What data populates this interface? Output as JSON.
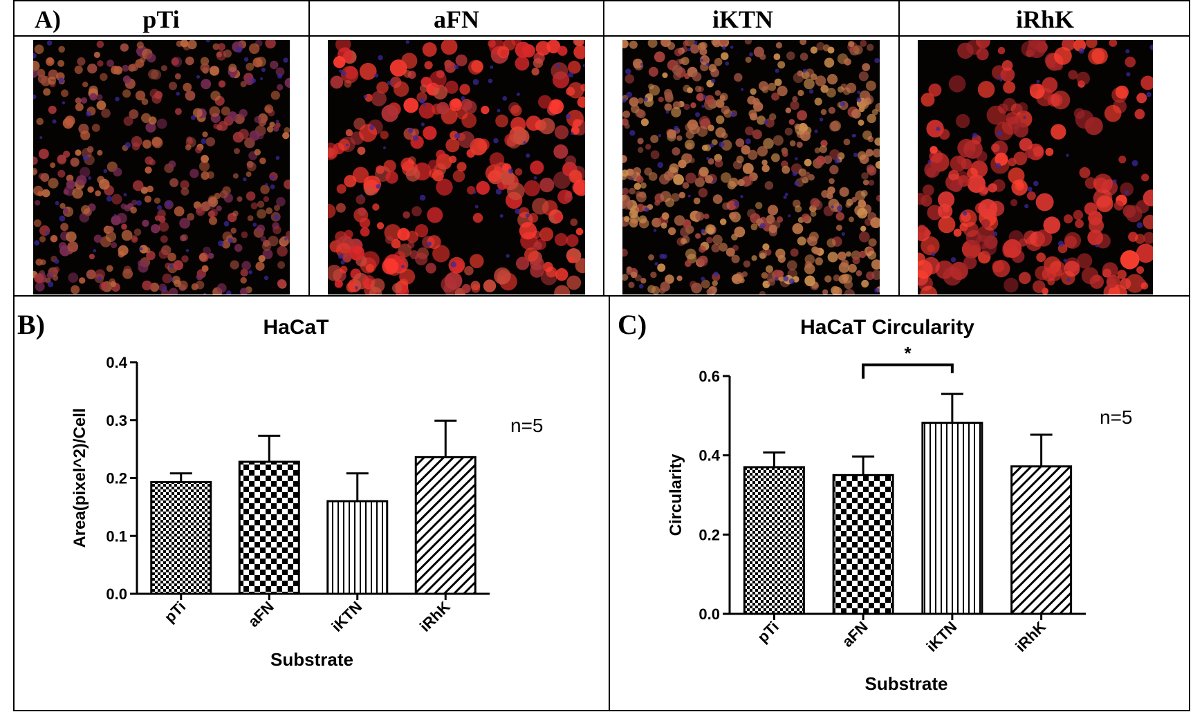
{
  "panel_a": {
    "label": "A)",
    "images": [
      {
        "title": "pTi"
      },
      {
        "title": "aFN"
      },
      {
        "title": "iKTN"
      },
      {
        "title": "iRhK"
      }
    ]
  },
  "panel_b": {
    "label": "B)",
    "annotation": "n=5"
  },
  "panel_c": {
    "label": "C)",
    "annotation": "n=5",
    "significance": "*"
  },
  "chart_data": [
    {
      "type": "bar",
      "title": "HaCaT",
      "xlabel": "Substrate",
      "ylabel": "Area(pixel^2)/Cell",
      "ylim": [
        0,
        0.4
      ],
      "yticks": [
        "0.0",
        "0.1",
        "0.2",
        "0.3",
        "0.4"
      ],
      "categories": [
        "pTi",
        "aFN",
        "iKTN",
        "iRhK"
      ],
      "values": [
        0.193,
        0.228,
        0.16,
        0.236
      ],
      "errors": [
        0.015,
        0.045,
        0.048,
        0.063
      ],
      "patterns": [
        "fine-checker",
        "checker",
        "vertical-lines",
        "diagonal-lines"
      ]
    },
    {
      "type": "bar",
      "title": "HaCaT Circularity",
      "xlabel": "Substrate",
      "ylabel": "Circularity",
      "ylim": [
        0,
        0.6
      ],
      "yticks": [
        "0.0",
        "0.2",
        "0.4",
        "0.6"
      ],
      "categories": [
        "pTi",
        "aFN",
        "iKTN",
        "iRhK"
      ],
      "values": [
        0.37,
        0.35,
        0.482,
        0.372
      ],
      "errors": [
        0.037,
        0.047,
        0.073,
        0.08
      ],
      "patterns": [
        "fine-checker",
        "checker",
        "vertical-lines",
        "diagonal-lines"
      ],
      "significance": {
        "between": [
          "aFN",
          "iKTN"
        ],
        "label": "*"
      }
    }
  ]
}
